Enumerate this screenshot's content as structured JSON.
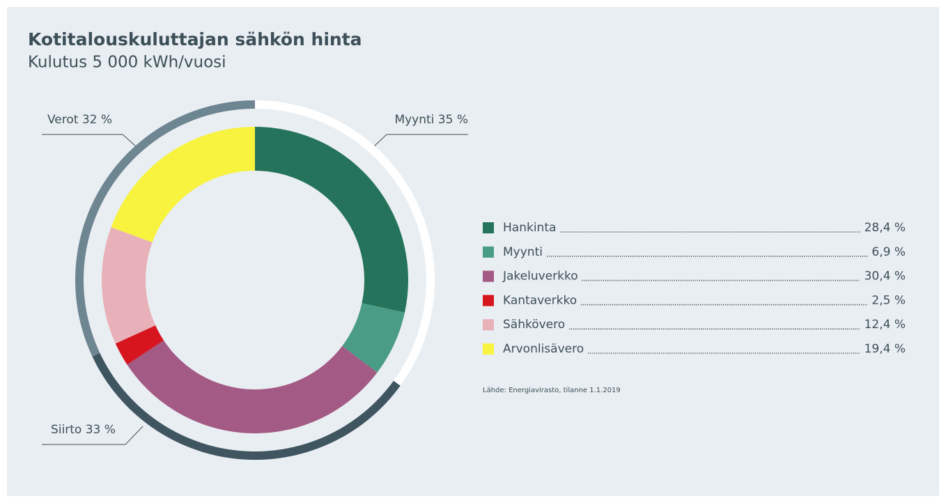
{
  "chart_data": {
    "type": "donut",
    "title": "Kotitalouskuluttajan sähkön hinta",
    "subtitle": "Kulutus 5 000 kWh/vuosi",
    "categories": [
      "Hankinta",
      "Myynti",
      "Jakeluverkko",
      "Kantaverkko",
      "Sähkövero",
      "Arvonlisävero"
    ],
    "values": [
      28.4,
      6.9,
      30.4,
      2.5,
      12.4,
      19.4
    ],
    "value_labels": [
      "28,4 %",
      "6,9 %",
      "30,4 %",
      "2,5 %",
      "12,4 %",
      "19,4 %"
    ],
    "colors": [
      "#25735a",
      "#4a9c86",
      "#a35a84",
      "#d7151f",
      "#e8b1b9",
      "#f7f33e"
    ],
    "outer": {
      "categories": [
        "Myynti",
        "Siirto",
        "Verot"
      ],
      "values": [
        35,
        33,
        32
      ],
      "value_labels": [
        "35 %",
        "33 %",
        "32 %"
      ],
      "colors": [
        "#ffffff",
        "#3f5560",
        "#6e8592"
      ]
    },
    "note": "Lähde: Energiavirasto, tilanne 1.1.2019"
  }
}
